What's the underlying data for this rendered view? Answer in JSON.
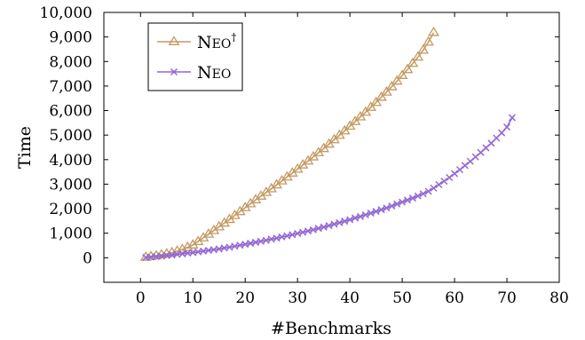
{
  "chart_data": {
    "type": "line",
    "title": "",
    "xlabel": "#Benchmarks",
    "ylabel": "Time",
    "xlim": [
      -7,
      80
    ],
    "ylim": [
      -1000,
      10000
    ],
    "xticks": [
      0,
      10,
      20,
      30,
      40,
      50,
      60,
      70,
      80
    ],
    "xtick_labels": [
      "0",
      "10",
      "20",
      "30",
      "40",
      "50",
      "60",
      "70",
      "80"
    ],
    "yticks": [
      0,
      1000,
      2000,
      3000,
      4000,
      5000,
      6000,
      7000,
      8000,
      9000,
      10000
    ],
    "ytick_labels": [
      "0",
      "1,000",
      "2,000",
      "3,000",
      "4,000",
      "5,000",
      "6,000",
      "7,000",
      "8,000",
      "9,000",
      "10,000"
    ],
    "grid": false,
    "legend_position": "top-left",
    "series": [
      {
        "name": "Neo†",
        "label_main": "N",
        "label_sc": "EO",
        "label_sup": "†",
        "marker": "triangle",
        "color": "#c49a62",
        "x": [
          1,
          2,
          3,
          4,
          5,
          6,
          7,
          8,
          9,
          10,
          11,
          12,
          13,
          14,
          15,
          16,
          17,
          18,
          19,
          20,
          21,
          22,
          23,
          24,
          25,
          26,
          27,
          28,
          29,
          30,
          31,
          32,
          33,
          34,
          35,
          36,
          37,
          38,
          39,
          40,
          41,
          42,
          43,
          44,
          45,
          46,
          47,
          48,
          49,
          50,
          51,
          52,
          53,
          54,
          55,
          56
        ],
        "y": [
          20,
          50,
          80,
          120,
          160,
          210,
          270,
          340,
          420,
          520,
          660,
          810,
          960,
          1110,
          1260,
          1410,
          1560,
          1720,
          1880,
          2040,
          2200,
          2360,
          2510,
          2660,
          2810,
          2970,
          3130,
          3290,
          3450,
          3610,
          3780,
          3940,
          4110,
          4280,
          4450,
          4630,
          4810,
          4990,
          5170,
          5360,
          5550,
          5740,
          5930,
          6130,
          6330,
          6540,
          6750,
          6970,
          7200,
          7430,
          7670,
          7920,
          8180,
          8460,
          8790,
          9180
        ]
      },
      {
        "name": "Neo",
        "label_main": "N",
        "label_sc": "EO",
        "label_sup": "",
        "marker": "cross",
        "color": "#9467d6",
        "x": [
          1,
          2,
          3,
          4,
          5,
          6,
          7,
          8,
          9,
          10,
          11,
          12,
          13,
          14,
          15,
          16,
          17,
          18,
          19,
          20,
          21,
          22,
          23,
          24,
          25,
          26,
          27,
          28,
          29,
          30,
          31,
          32,
          33,
          34,
          35,
          36,
          37,
          38,
          39,
          40,
          41,
          42,
          43,
          44,
          45,
          46,
          47,
          48,
          49,
          50,
          51,
          52,
          53,
          54,
          55,
          56,
          57,
          58,
          59,
          60,
          61,
          62,
          63,
          64,
          65,
          66,
          67,
          68,
          69,
          70,
          71
        ],
        "y": [
          10,
          30,
          50,
          70,
          90,
          110,
          140,
          160,
          190,
          210,
          240,
          270,
          300,
          330,
          360,
          400,
          430,
          470,
          510,
          550,
          590,
          630,
          670,
          710,
          760,
          800,
          850,
          890,
          940,
          990,
          1040,
          1090,
          1140,
          1200,
          1250,
          1310,
          1370,
          1430,
          1490,
          1550,
          1620,
          1680,
          1750,
          1820,
          1890,
          1960,
          2030,
          2110,
          2190,
          2270,
          2350,
          2430,
          2520,
          2610,
          2710,
          2840,
          2980,
          3120,
          3270,
          3430,
          3590,
          3760,
          3930,
          4110,
          4290,
          4480,
          4670,
          4880,
          5090,
          5330,
          5710
        ]
      }
    ]
  }
}
